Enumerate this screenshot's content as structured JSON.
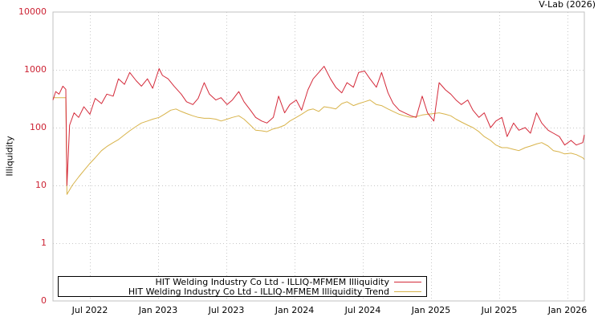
{
  "credit": "V-Lab (2026)",
  "colors": {
    "illiquidity": "#d42a3a",
    "trend": "#d8b34a",
    "axis_tick_text": "#cc2233",
    "grid": "#c8c8c8",
    "frame": "#c0c0c0"
  },
  "legend": {
    "items": [
      {
        "label": "HIT Welding Industry Co Ltd - ILLIQ-MFMEM Illiquidity",
        "color": "#d42a3a"
      },
      {
        "label": "HIT Welding Industry Co Ltd - ILLIQ-MFMEM Illiquidity Trend",
        "color": "#d8b34a"
      }
    ]
  },
  "chart_data": {
    "type": "line",
    "title": "",
    "xlabel": "",
    "ylabel": "Illiquidity",
    "yscale": "log",
    "ylim": [
      0,
      10000
    ],
    "ytick_labels": [
      "10000",
      "1000",
      "100",
      "10",
      "1",
      "0"
    ],
    "xtick_labels": [
      "Jul 2022",
      "Jan 2023",
      "Jul 2023",
      "Jan 2024",
      "Jul 2024",
      "Jan 2025",
      "Jul 2025",
      "Jan 2026"
    ],
    "x_range": [
      "2022-03",
      "2026-03"
    ],
    "grid": true,
    "legend_position": "bottom-left inside",
    "series": [
      {
        "name": "HIT Welding Industry Co Ltd - ILLIQ-MFMEM Illiquidity",
        "color": "#d42a3a",
        "x": [
          "2022-03-20",
          "2022-04-01",
          "2022-04-10",
          "2022-04-20",
          "2022-04-28",
          "2022-05-01",
          "2022-05-08",
          "2022-05-20",
          "2022-06-01",
          "2022-06-15",
          "2022-07-01",
          "2022-07-15",
          "2022-08-01",
          "2022-08-15",
          "2022-09-01",
          "2022-09-15",
          "2022-10-01",
          "2022-10-15",
          "2022-11-01",
          "2022-11-15",
          "2022-12-01",
          "2022-12-15",
          "2023-01-01",
          "2023-01-10",
          "2023-01-25",
          "2023-02-10",
          "2023-03-01",
          "2023-03-15",
          "2023-04-01",
          "2023-04-15",
          "2023-05-01",
          "2023-05-15",
          "2023-06-01",
          "2023-06-15",
          "2023-07-01",
          "2023-07-15",
          "2023-08-01",
          "2023-08-15",
          "2023-09-01",
          "2023-09-15",
          "2023-10-01",
          "2023-10-15",
          "2023-11-01",
          "2023-11-15",
          "2023-12-01",
          "2023-12-15",
          "2024-01-01",
          "2024-01-15",
          "2024-02-01",
          "2024-02-15",
          "2024-03-01",
          "2024-03-15",
          "2024-04-01",
          "2024-04-15",
          "2024-05-01",
          "2024-05-15",
          "2024-06-01",
          "2024-06-15",
          "2024-07-01",
          "2024-07-15",
          "2024-08-01",
          "2024-08-15",
          "2024-09-01",
          "2024-09-15",
          "2024-10-01",
          "2024-10-15",
          "2024-11-01",
          "2024-11-15",
          "2024-12-01",
          "2024-12-15",
          "2025-01-01",
          "2025-01-15",
          "2025-02-01",
          "2025-02-15",
          "2025-03-01",
          "2025-03-15",
          "2025-04-01",
          "2025-04-15",
          "2025-05-01",
          "2025-05-15",
          "2025-06-01",
          "2025-06-15",
          "2025-07-01",
          "2025-07-15",
          "2025-08-01",
          "2025-08-15",
          "2025-09-01",
          "2025-09-15",
          "2025-10-01",
          "2025-10-15",
          "2025-11-01",
          "2025-11-15",
          "2025-12-01",
          "2025-12-15",
          "2026-01-01",
          "2026-01-15",
          "2026-02-01",
          "2026-02-15"
        ],
        "values": [
          300,
          420,
          380,
          520,
          460,
          10,
          110,
          180,
          150,
          230,
          170,
          320,
          260,
          380,
          350,
          700,
          560,
          900,
          650,
          520,
          700,
          480,
          1050,
          800,
          700,
          520,
          380,
          280,
          250,
          320,
          600,
          380,
          300,
          330,
          250,
          300,
          420,
          280,
          200,
          150,
          130,
          120,
          150,
          350,
          180,
          250,
          300,
          200,
          450,
          700,
          900,
          1150,
          700,
          500,
          400,
          600,
          500,
          900,
          950,
          700,
          500,
          900,
          400,
          260,
          200,
          180,
          160,
          150,
          350,
          180,
          130,
          600,
          450,
          380,
          300,
          250,
          300,
          200,
          150,
          180,
          100,
          130,
          150,
          70,
          120,
          90,
          100,
          80,
          180,
          120,
          90,
          80,
          70,
          50,
          60,
          50,
          55,
          75
        ]
      },
      {
        "name": "HIT Welding Industry Co Ltd - ILLIQ-MFMEM Illiquidity Trend",
        "color": "#d8b34a",
        "x": [
          "2022-03-20",
          "2022-04-28",
          "2022-05-01",
          "2022-05-15",
          "2022-06-01",
          "2022-06-15",
          "2022-07-01",
          "2022-07-15",
          "2022-08-01",
          "2022-08-15",
          "2022-09-01",
          "2022-09-15",
          "2022-10-01",
          "2022-10-15",
          "2022-11-01",
          "2022-11-15",
          "2022-12-01",
          "2022-12-15",
          "2023-01-01",
          "2023-01-15",
          "2023-02-01",
          "2023-02-15",
          "2023-03-01",
          "2023-03-15",
          "2023-04-01",
          "2023-04-15",
          "2023-05-01",
          "2023-05-15",
          "2023-06-01",
          "2023-06-15",
          "2023-07-01",
          "2023-07-15",
          "2023-08-01",
          "2023-08-15",
          "2023-09-01",
          "2023-09-15",
          "2023-10-01",
          "2023-10-15",
          "2023-11-01",
          "2023-11-15",
          "2023-12-01",
          "2023-12-15",
          "2024-01-01",
          "2024-01-15",
          "2024-02-01",
          "2024-02-15",
          "2024-03-01",
          "2024-03-15",
          "2024-04-01",
          "2024-04-15",
          "2024-05-01",
          "2024-05-15",
          "2024-06-01",
          "2024-06-15",
          "2024-07-01",
          "2024-07-15",
          "2024-08-01",
          "2024-08-15",
          "2024-09-01",
          "2024-09-15",
          "2024-10-01",
          "2024-10-15",
          "2024-11-01",
          "2024-11-15",
          "2024-12-01",
          "2024-12-15",
          "2025-01-01",
          "2025-01-15",
          "2025-02-01",
          "2025-02-15",
          "2025-03-01",
          "2025-03-15",
          "2025-04-01",
          "2025-04-15",
          "2025-05-01",
          "2025-05-15",
          "2025-06-01",
          "2025-06-15",
          "2025-07-01",
          "2025-07-15",
          "2025-08-01",
          "2025-08-15",
          "2025-09-01",
          "2025-09-15",
          "2025-10-01",
          "2025-10-15",
          "2025-11-01",
          "2025-11-15",
          "2025-12-01",
          "2025-12-15",
          "2026-01-01",
          "2026-01-15",
          "2026-02-01",
          "2026-02-15"
        ],
        "values": [
          330,
          330,
          7,
          10,
          14,
          18,
          24,
          30,
          40,
          47,
          55,
          62,
          75,
          88,
          105,
          120,
          130,
          140,
          150,
          170,
          200,
          210,
          190,
          175,
          160,
          150,
          145,
          145,
          140,
          130,
          140,
          150,
          160,
          140,
          110,
          90,
          88,
          85,
          95,
          100,
          110,
          130,
          150,
          170,
          200,
          210,
          190,
          230,
          220,
          210,
          260,
          280,
          240,
          260,
          280,
          300,
          250,
          240,
          210,
          190,
          170,
          160,
          150,
          155,
          165,
          170,
          175,
          180,
          170,
          160,
          140,
          125,
          110,
          100,
          85,
          70,
          60,
          50,
          45,
          45,
          42,
          40,
          45,
          48,
          52,
          55,
          48,
          40,
          38,
          35,
          36,
          34,
          30,
          28
        ]
      }
    ]
  }
}
